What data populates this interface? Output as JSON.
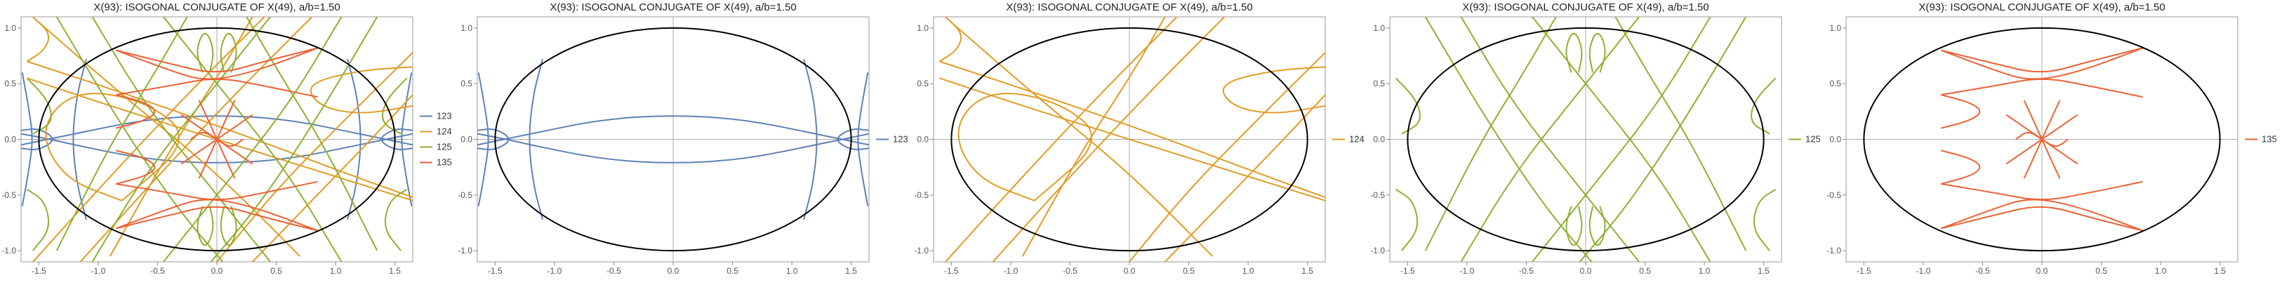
{
  "chart_data": [
    {
      "type": "line",
      "title": "X(93): ISOGONAL CONJUGATE OF X(49), a/b=1.50",
      "xlim": [
        -1.65,
        1.65
      ],
      "ylim": [
        -1.1,
        1.1
      ],
      "xticks": [
        -1.5,
        -1.0,
        -0.5,
        0.0,
        0.5,
        1.0,
        1.5
      ],
      "yticks": [
        -1.0,
        -0.5,
        0.0,
        0.5,
        1.0
      ],
      "grid": false,
      "legend": "right",
      "ellipse": {
        "a": 1.5,
        "b": 1.0,
        "color": "#000000"
      },
      "series": [
        {
          "name": "123",
          "color": "#5e81b5",
          "pattern": "p123"
        },
        {
          "name": "124",
          "color": "#e19c24",
          "pattern": "p124"
        },
        {
          "name": "125",
          "color": "#8fb032",
          "pattern": "p125"
        },
        {
          "name": "135",
          "color": "#eb6235",
          "pattern": "p135"
        }
      ]
    },
    {
      "type": "line",
      "title": "X(93): ISOGONAL CONJUGATE OF X(49), a/b=1.50",
      "xlim": [
        -1.65,
        1.65
      ],
      "ylim": [
        -1.1,
        1.1
      ],
      "xticks": [
        -1.5,
        -1.0,
        -0.5,
        0.0,
        0.5,
        1.0,
        1.5
      ],
      "yticks": [
        -1.0,
        -0.5,
        0.0,
        0.5,
        1.0
      ],
      "grid": false,
      "legend": "right",
      "ellipse": {
        "a": 1.5,
        "b": 1.0,
        "color": "#000000"
      },
      "series": [
        {
          "name": "123",
          "color": "#5e81b5",
          "pattern": "p123"
        }
      ]
    },
    {
      "type": "line",
      "title": "X(93): ISOGONAL CONJUGATE OF X(49), a/b=1.50",
      "xlim": [
        -1.65,
        1.65
      ],
      "ylim": [
        -1.1,
        1.1
      ],
      "xticks": [
        -1.5,
        -1.0,
        -0.5,
        0.0,
        0.5,
        1.0,
        1.5
      ],
      "yticks": [
        -1.0,
        -0.5,
        0.0,
        0.5,
        1.0
      ],
      "grid": false,
      "legend": "right",
      "ellipse": {
        "a": 1.5,
        "b": 1.0,
        "color": "#000000"
      },
      "series": [
        {
          "name": "124",
          "color": "#e19c24",
          "pattern": "p124"
        }
      ]
    },
    {
      "type": "line",
      "title": "X(93): ISOGONAL CONJUGATE OF X(49), a/b=1.50",
      "xlim": [
        -1.65,
        1.65
      ],
      "ylim": [
        -1.1,
        1.1
      ],
      "xticks": [
        -1.5,
        -1.0,
        -0.5,
        0.0,
        0.5,
        1.0,
        1.5
      ],
      "yticks": [
        -1.0,
        -0.5,
        0.0,
        0.5,
        1.0
      ],
      "grid": false,
      "legend": "right",
      "ellipse": {
        "a": 1.5,
        "b": 1.0,
        "color": "#000000"
      },
      "series": [
        {
          "name": "125",
          "color": "#8fb032",
          "pattern": "p125"
        }
      ]
    },
    {
      "type": "line",
      "title": "X(93): ISOGONAL CONJUGATE OF X(49), a/b=1.50",
      "xlim": [
        -1.65,
        1.65
      ],
      "ylim": [
        -1.1,
        1.1
      ],
      "xticks": [
        -1.5,
        -1.0,
        -0.5,
        0.0,
        0.5,
        1.0,
        1.5
      ],
      "yticks": [
        -1.0,
        -0.5,
        0.0,
        0.5,
        1.0
      ],
      "grid": false,
      "legend": "right",
      "ellipse": {
        "a": 1.5,
        "b": 1.0,
        "color": "#000000"
      },
      "series": [
        {
          "name": "135",
          "color": "#eb6235",
          "pattern": "p135"
        }
      ]
    }
  ]
}
